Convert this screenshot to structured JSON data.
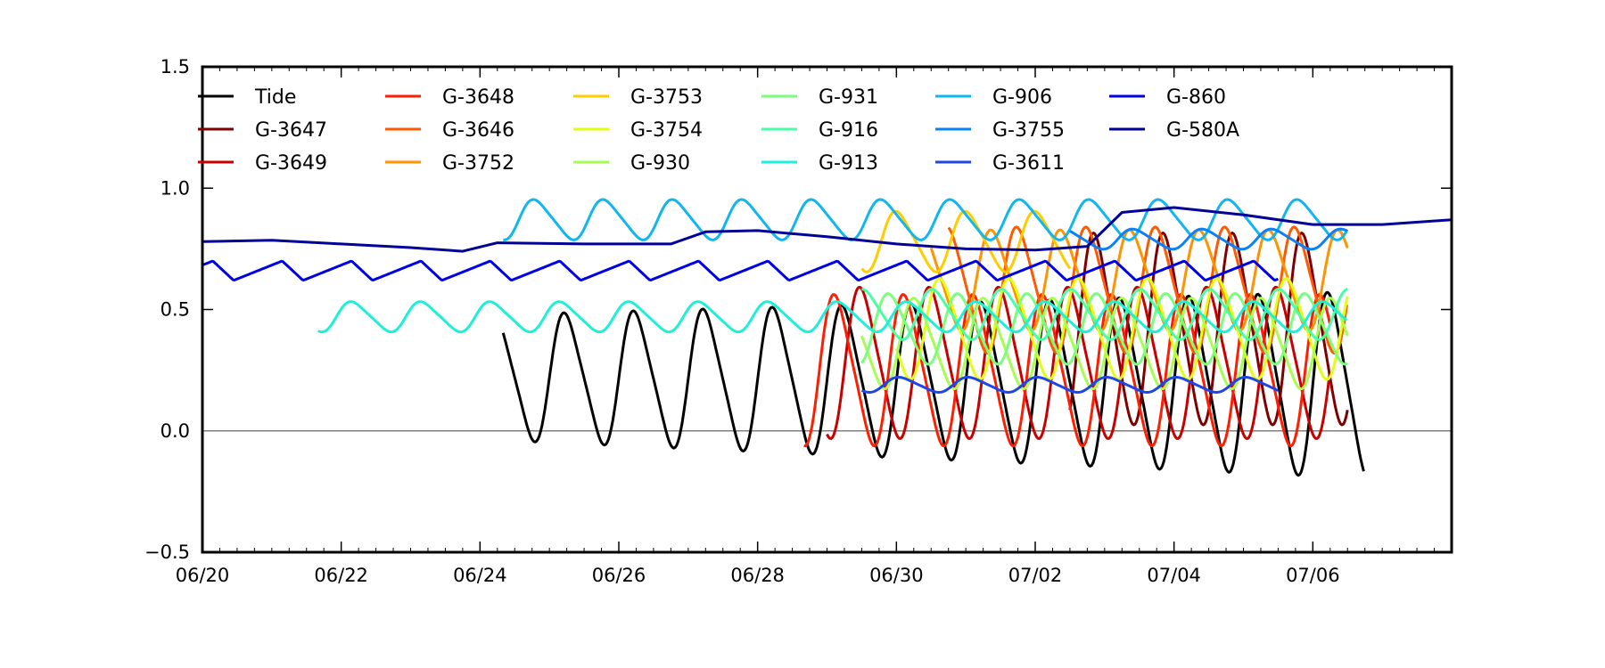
{
  "chart_data": {
    "type": "line",
    "title": "",
    "xlabel": "",
    "ylabel": "",
    "ylim": [
      -0.5,
      1.5
    ],
    "xlim": [
      "06/20",
      "07/08"
    ],
    "yticks": [
      -0.5,
      0.0,
      0.5,
      1.0,
      1.5
    ],
    "ytick_labels": [
      "−0.5",
      "0.0",
      "0.5",
      "1.0",
      "1.5"
    ],
    "xticks": [
      "06/20",
      "06/22",
      "06/24",
      "06/26",
      "06/28",
      "06/30",
      "07/02",
      "07/04",
      "07/06"
    ],
    "zero_line": 0.0,
    "grid": false,
    "legend_position": "top-left",
    "legend_columns": 7,
    "series": [
      {
        "name": "Tide",
        "color": "#000000",
        "start": "06/24 08:00",
        "end": "07/06 18:00",
        "pattern": "tidal",
        "base": 0.22,
        "amp": 0.25,
        "amp_growth": 0.12,
        "trend": -0.03,
        "period_days": 1.0
      },
      {
        "name": "G-3647",
        "color": "#7f0000",
        "start": "07/02 12:00",
        "end": "07/06 12:00",
        "pattern": "tidal",
        "base": 0.42,
        "amp": 0.38,
        "period_days": 1.0
      },
      {
        "name": "G-3649",
        "color": "#c80000",
        "start": "06/29 00:00",
        "end": "07/06 06:00",
        "pattern": "tidal",
        "base": 0.28,
        "amp": 0.3,
        "period_days": 1.0
      },
      {
        "name": "G-3648",
        "color": "#ff1e00",
        "start": "06/28 16:00",
        "end": "07/06 06:00",
        "pattern": "tidal",
        "base": 0.25,
        "amp": 0.3,
        "period_days": 1.0
      },
      {
        "name": "G-3646",
        "color": "#ff5a00",
        "start": "06/30 18:00",
        "end": "07/06 12:00",
        "pattern": "tidal",
        "base": 0.58,
        "amp": 0.25,
        "period_days": 1.0
      },
      {
        "name": "G-3752",
        "color": "#ff9400",
        "start": "06/30 12:00",
        "end": "07/06 12:00",
        "pattern": "tidal",
        "base": 0.62,
        "amp": 0.2,
        "period_days": 1.0
      },
      {
        "name": "G-3753",
        "color": "#ffcc00",
        "start": "06/29 12:00",
        "end": "07/02 12:00",
        "pattern": "tidal",
        "base": 0.78,
        "amp": 0.12,
        "period_days": 1.0
      },
      {
        "name": "G-3754",
        "color": "#e1ff14",
        "start": "06/30 00:00",
        "end": "07/06 12:00",
        "pattern": "tidal",
        "base": 0.42,
        "amp": 0.2,
        "period_days": 1.0
      },
      {
        "name": "G-930",
        "color": "#a6ff50",
        "start": "06/29 12:00",
        "end": "07/06 12:00",
        "pattern": "tidal",
        "base": 0.36,
        "amp": 0.18,
        "period_days": 1.0
      },
      {
        "name": "G-931",
        "color": "#7aff7d",
        "start": "06/29 12:00",
        "end": "07/06 12:00",
        "pattern": "tidal",
        "base": 0.42,
        "amp": 0.14,
        "period_days": 1.0
      },
      {
        "name": "G-916",
        "color": "#48ffa8",
        "start": "06/29 12:00",
        "end": "07/06 12:00",
        "pattern": "tidal",
        "base": 0.48,
        "amp": 0.1,
        "period_days": 1.0
      },
      {
        "name": "G-913",
        "color": "#1ef0d8",
        "start": "06/21 16:00",
        "end": "07/06 12:00",
        "pattern": "tidal",
        "base": 0.47,
        "amp": 0.06,
        "period_days": 1.0
      },
      {
        "name": "G-906",
        "color": "#10b6f0",
        "start": "06/24 08:00",
        "end": "07/06 12:00",
        "pattern": "tidal",
        "base": 0.87,
        "amp": 0.08,
        "period_days": 1.0
      },
      {
        "name": "G-3755",
        "color": "#0a82f5",
        "start": "07/02 12:00",
        "end": "07/06 12:00",
        "pattern": "tidal",
        "base": 0.79,
        "amp": 0.04,
        "period_days": 1.0
      },
      {
        "name": "G-3611",
        "color": "#1e46e6",
        "start": "06/29 12:00",
        "end": "07/05 12:00",
        "pattern": "tidal",
        "base": 0.19,
        "amp": 0.03,
        "period_days": 1.0
      },
      {
        "name": "G-860",
        "color": "#0000e6",
        "start": "06/20 00:00",
        "end": "07/05 12:00",
        "pattern": "sawtooth",
        "base": 0.66,
        "amp": 0.04,
        "period_days": 1.0
      },
      {
        "name": "G-580A",
        "color": "#000096",
        "start": "06/20 00:00",
        "end": "07/08 00:00",
        "pattern": "smooth",
        "points": [
          [
            "06/20 00:00",
            0.78
          ],
          [
            "06/21 00:00",
            0.785
          ],
          [
            "06/22 00:00",
            0.77
          ],
          [
            "06/23 00:00",
            0.755
          ],
          [
            "06/23 18:00",
            0.74
          ],
          [
            "06/24 06:00",
            0.775
          ],
          [
            "06/25 12:00",
            0.77
          ],
          [
            "06/26 12:00",
            0.77
          ],
          [
            "06/26 18:00",
            0.77
          ],
          [
            "06/27 06:00",
            0.82
          ],
          [
            "06/28 00:00",
            0.825
          ],
          [
            "06/29 00:00",
            0.8
          ],
          [
            "06/30 00:00",
            0.77
          ],
          [
            "07/01 00:00",
            0.75
          ],
          [
            "07/02 00:00",
            0.745
          ],
          [
            "07/02 18:00",
            0.76
          ],
          [
            "07/03 06:00",
            0.9
          ],
          [
            "07/04 00:00",
            0.92
          ],
          [
            "07/05 00:00",
            0.89
          ],
          [
            "07/06 00:00",
            0.85
          ],
          [
            "07/07 00:00",
            0.85
          ],
          [
            "07/08 00:00",
            0.87
          ]
        ]
      }
    ]
  }
}
